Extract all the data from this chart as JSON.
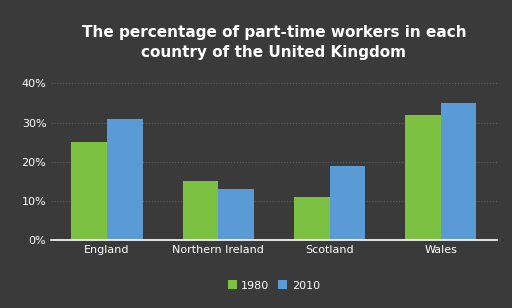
{
  "title": "The percentage of part-time workers in each\ncountry of the United Kingdom",
  "categories": [
    "England",
    "Northern Ireland",
    "Scotland",
    "Wales"
  ],
  "values_1980": [
    25,
    15,
    11,
    32
  ],
  "values_2010": [
    31,
    13,
    19,
    35
  ],
  "color_1980": "#7DC142",
  "color_2010": "#5B9BD5",
  "background_color": "#3a3a3a",
  "text_color": "#FFFFFF",
  "grid_color": "#666666",
  "yticks": [
    0,
    10,
    20,
    30,
    40
  ],
  "ytick_labels": [
    "0%",
    "10%",
    "20%",
    "30%",
    "40%"
  ],
  "ylim": [
    0,
    44
  ],
  "legend_labels": [
    "1980",
    "2010"
  ],
  "bar_width": 0.32,
  "title_fontsize": 11,
  "tick_fontsize": 8,
  "legend_fontsize": 8
}
